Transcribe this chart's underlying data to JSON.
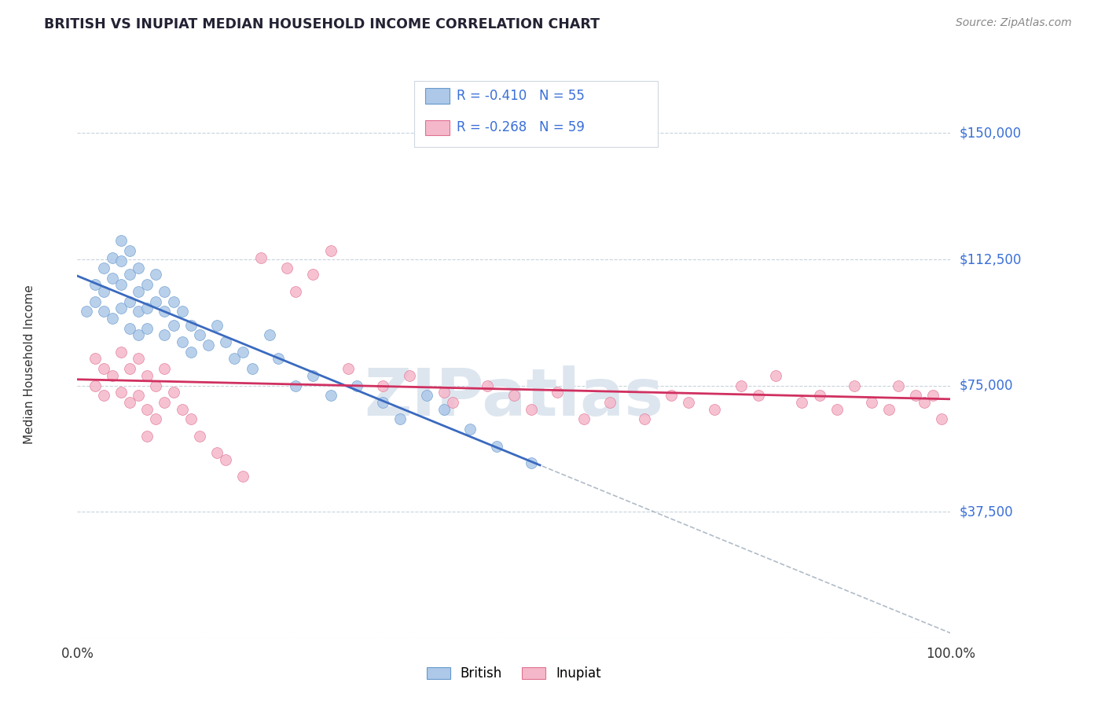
{
  "title": "BRITISH VS INUPIAT MEDIAN HOUSEHOLD INCOME CORRELATION CHART",
  "source_text": "Source: ZipAtlas.com",
  "ylabel": "Median Household Income",
  "x_min": 0.0,
  "x_max": 1.0,
  "y_min": 0,
  "y_max": 162500,
  "y_ticks": [
    0,
    37500,
    75000,
    112500,
    150000
  ],
  "y_tick_labels": [
    "",
    "$37,500",
    "$75,000",
    "$112,500",
    "$150,000"
  ],
  "x_tick_labels": [
    "0.0%",
    "100.0%"
  ],
  "british_color": "#adc8e8",
  "inupiat_color": "#f5b8cb",
  "british_edge_color": "#6699cc",
  "inupiat_edge_color": "#e07090",
  "british_line_color": "#3a6abf",
  "inupiat_line_color": "#d03060",
  "dashed_line_color": "#b0bcc8",
  "title_color": "#222233",
  "axis_label_color": "#3a6fd8",
  "legend_color": "#3a6fd8",
  "source_color": "#888888",
  "watermark_color": "#dde6ef",
  "british_R": -0.41,
  "british_N": 55,
  "inupiat_R": -0.268,
  "inupiat_N": 59,
  "british_x": [
    0.01,
    0.02,
    0.02,
    0.03,
    0.03,
    0.03,
    0.04,
    0.04,
    0.04,
    0.05,
    0.05,
    0.05,
    0.05,
    0.06,
    0.06,
    0.06,
    0.06,
    0.07,
    0.07,
    0.07,
    0.07,
    0.08,
    0.08,
    0.08,
    0.09,
    0.09,
    0.1,
    0.1,
    0.1,
    0.11,
    0.11,
    0.12,
    0.12,
    0.13,
    0.13,
    0.14,
    0.15,
    0.16,
    0.17,
    0.18,
    0.19,
    0.2,
    0.22,
    0.23,
    0.25,
    0.27,
    0.29,
    0.32,
    0.35,
    0.37,
    0.4,
    0.42,
    0.45,
    0.48,
    0.52
  ],
  "british_y": [
    97000,
    105000,
    100000,
    110000,
    103000,
    97000,
    113000,
    107000,
    95000,
    118000,
    112000,
    105000,
    98000,
    115000,
    108000,
    100000,
    92000,
    110000,
    103000,
    97000,
    90000,
    105000,
    98000,
    92000,
    108000,
    100000,
    103000,
    97000,
    90000,
    100000,
    93000,
    97000,
    88000,
    93000,
    85000,
    90000,
    87000,
    93000,
    88000,
    83000,
    85000,
    80000,
    90000,
    83000,
    75000,
    78000,
    72000,
    75000,
    70000,
    65000,
    72000,
    68000,
    62000,
    57000,
    52000
  ],
  "inupiat_x": [
    0.02,
    0.02,
    0.03,
    0.03,
    0.04,
    0.05,
    0.05,
    0.06,
    0.06,
    0.07,
    0.07,
    0.08,
    0.08,
    0.08,
    0.09,
    0.09,
    0.1,
    0.1,
    0.11,
    0.12,
    0.13,
    0.14,
    0.16,
    0.17,
    0.19,
    0.21,
    0.24,
    0.25,
    0.27,
    0.29,
    0.31,
    0.35,
    0.38,
    0.42,
    0.43,
    0.47,
    0.5,
    0.52,
    0.55,
    0.58,
    0.61,
    0.65,
    0.68,
    0.7,
    0.73,
    0.76,
    0.78,
    0.8,
    0.83,
    0.85,
    0.87,
    0.89,
    0.91,
    0.93,
    0.94,
    0.96,
    0.97,
    0.98,
    0.99
  ],
  "inupiat_y": [
    83000,
    75000,
    80000,
    72000,
    78000,
    85000,
    73000,
    80000,
    70000,
    83000,
    72000,
    78000,
    68000,
    60000,
    75000,
    65000,
    80000,
    70000,
    73000,
    68000,
    65000,
    60000,
    55000,
    53000,
    48000,
    113000,
    110000,
    103000,
    108000,
    115000,
    80000,
    75000,
    78000,
    73000,
    70000,
    75000,
    72000,
    68000,
    73000,
    65000,
    70000,
    65000,
    72000,
    70000,
    68000,
    75000,
    72000,
    78000,
    70000,
    72000,
    68000,
    75000,
    70000,
    68000,
    75000,
    72000,
    70000,
    72000,
    65000
  ]
}
